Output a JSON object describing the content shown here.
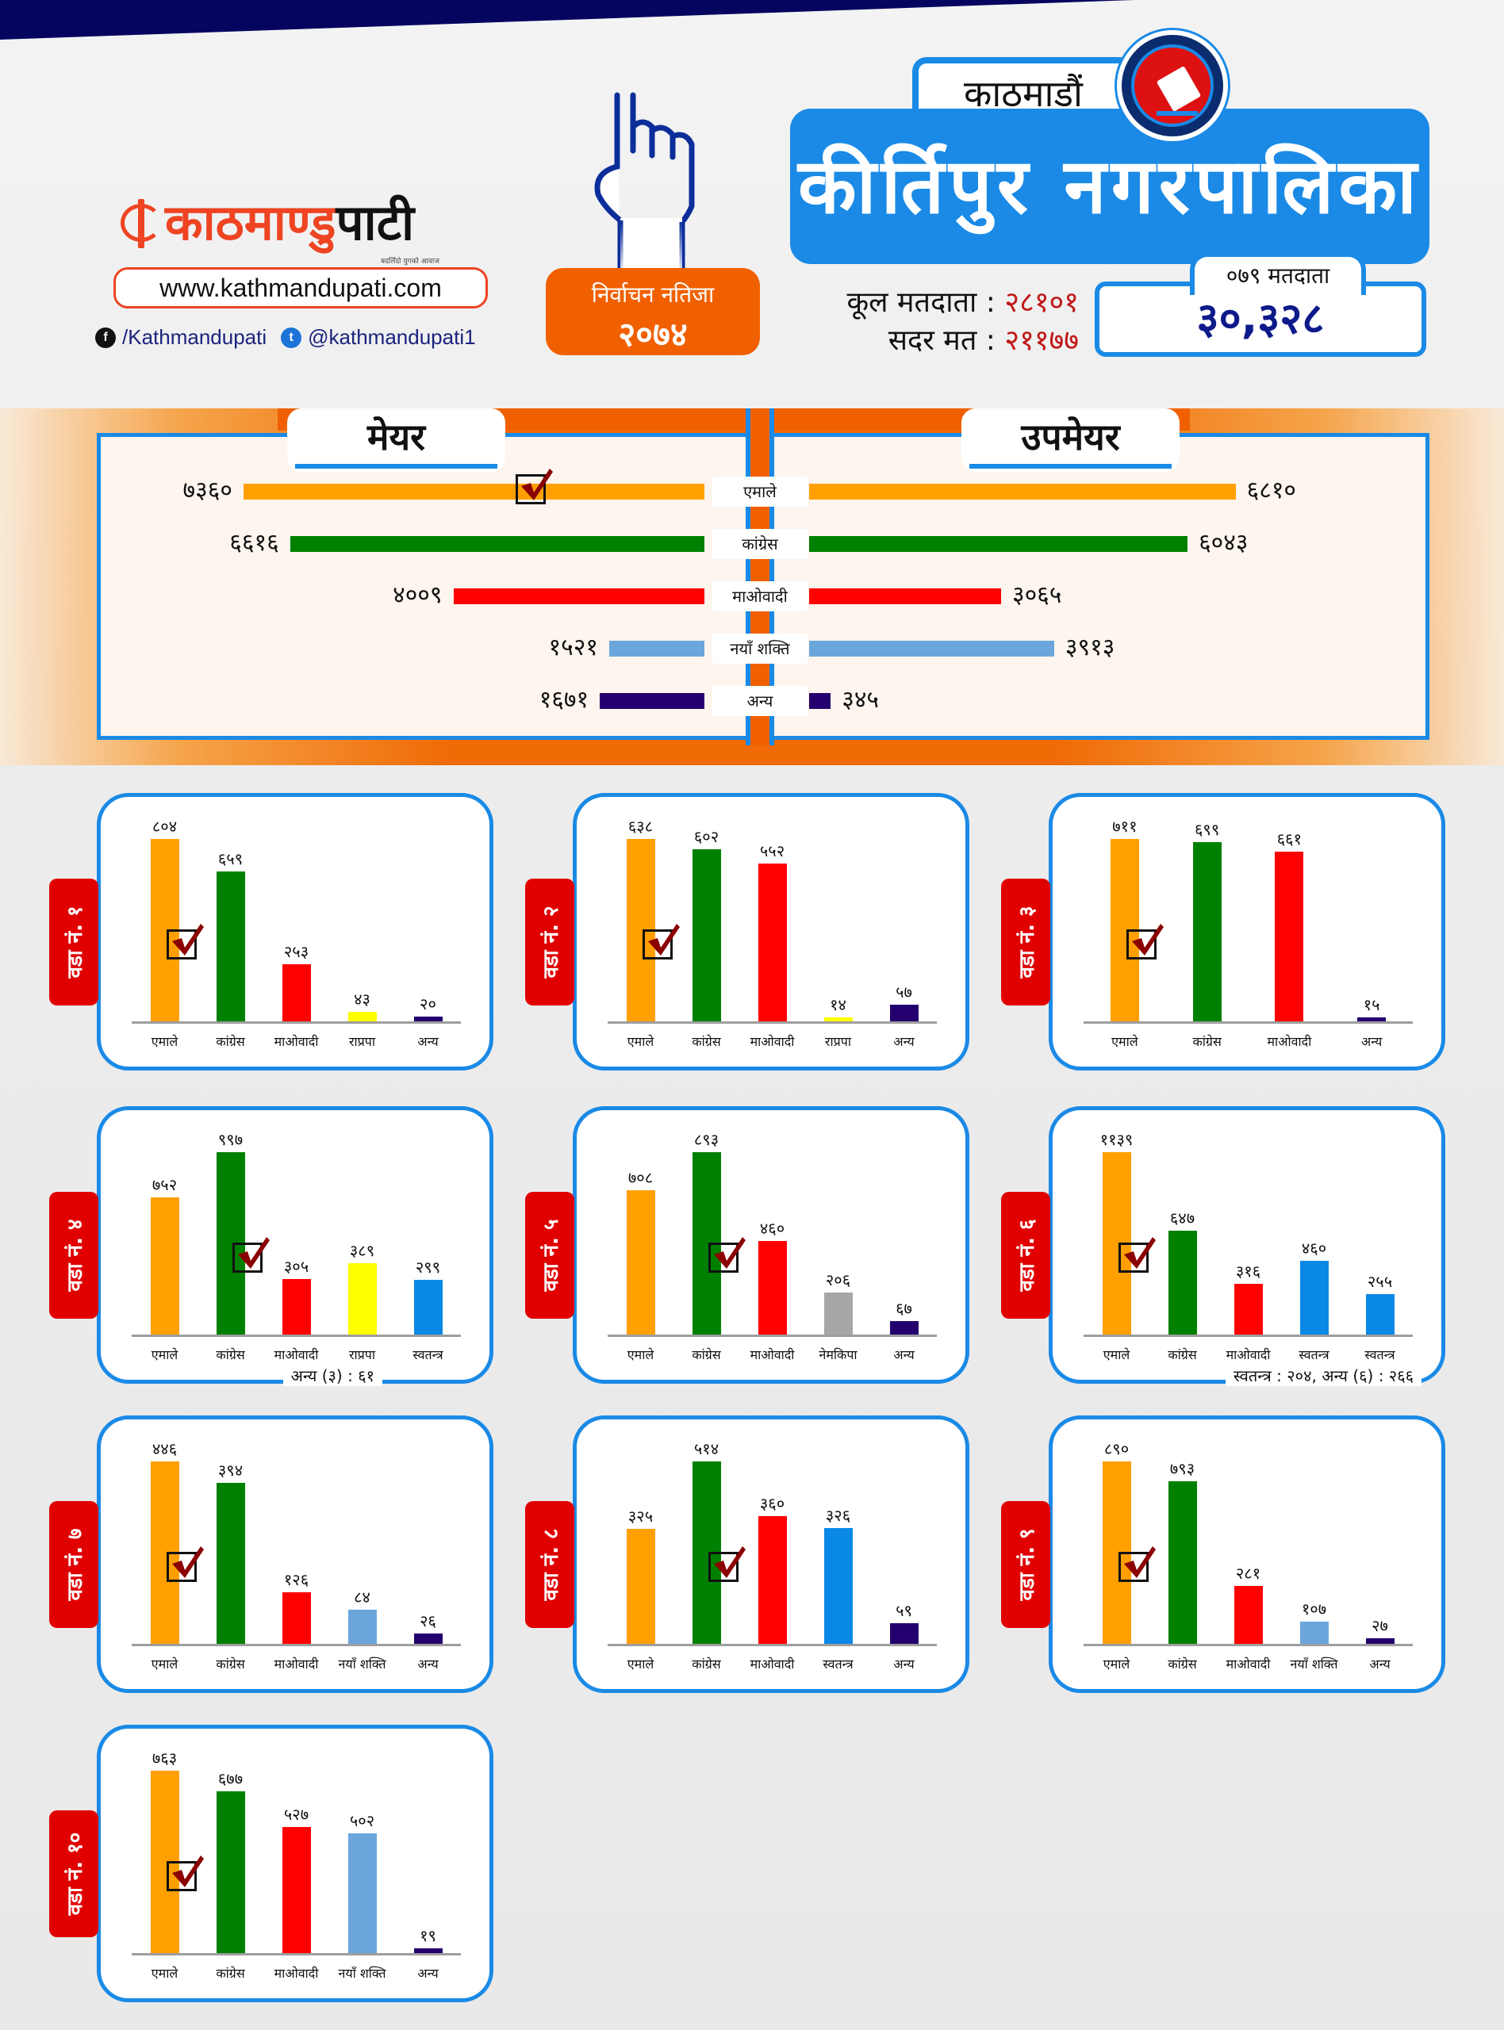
{
  "brand": {
    "logo_primary": "काठमाण्डु",
    "logo_secondary": "पाटी",
    "tagline": "बदलिँदो युगको आवाज",
    "website": "www.kathmandupati.com",
    "facebook": "/Kathmandupati",
    "twitter": "@kathmandupati1"
  },
  "badge": {
    "line1": "निर्वाचन नतिजा",
    "line2": "२०७४"
  },
  "header": {
    "district": "काठमाडौं",
    "municipality": "कीर्तिपुर नगरपालिका",
    "total_voters_label": "कूल मतदाता :",
    "total_voters": "२८१०१",
    "valid_votes_label": "सदर मत :",
    "valid_votes": "२११७७",
    "voters_079_label": "०७९ मतदाता",
    "voters_079": "३०,३२८"
  },
  "colors": {
    "एमाले": "#ffa000",
    "काँग्रेस": "#008000",
    "माओवादी": "#ff0000",
    "नयाँ शक्ति": "#6aa6dc",
    "अन्य": "#24006e",
    "राप्रपा": "#ffff00",
    "स्वतन्त्र": "#0a88e6",
    "नेमकिपा": "#a6a6a6",
    "accent_blue": "#1a8ae6",
    "accent_orange": "#f06000",
    "ward_tag_red": "#e00000",
    "check_red": "#8b0000"
  },
  "chart_data": [
    {
      "type": "bar",
      "orientation": "horizontal",
      "title": "मेयर",
      "categories": [
        "एमाले",
        "कांग्रेस",
        "माओवादी",
        "नयाँ शक्ति",
        "अन्य"
      ],
      "color_keys": [
        "एमाले",
        "काँग्रेस",
        "माओवादी",
        "नयाँ शक्ति",
        "अन्य"
      ],
      "values": [
        7360,
        6616,
        4009,
        1521,
        1671
      ],
      "labels": [
        "७३६०",
        "६६१६",
        "४००९",
        "१५२१",
        "१६७१"
      ],
      "winner_index": 0,
      "xlim": [
        0,
        7600
      ],
      "direction": "right-to-left"
    },
    {
      "type": "bar",
      "orientation": "horizontal",
      "title": "उपमेयर",
      "categories": [
        "एमाले",
        "कांग्रेस",
        "माओवादी",
        "नयाँ शक्ति",
        "अन्य"
      ],
      "color_keys": [
        "एमाले",
        "काँग्रेस",
        "माओवादी",
        "नयाँ शक्ति",
        "अन्य"
      ],
      "values": [
        6810,
        6043,
        3065,
        3913,
        345
      ],
      "labels": [
        "६८१०",
        "६०४३",
        "३०६५",
        "३९१३",
        "३४५"
      ],
      "winner_index": null,
      "xlim": [
        0,
        7600
      ],
      "direction": "left-to-right"
    },
    {
      "type": "bar",
      "title": "वडा नं. १",
      "categories": [
        "एमाले",
        "कांग्रेस",
        "माओवादी",
        "राप्रपा",
        "अन्य"
      ],
      "color_keys": [
        "एमाले",
        "काँग्रेस",
        "माओवादी",
        "राप्रपा",
        "अन्य"
      ],
      "values": [
        804,
        659,
        253,
        43,
        20
      ],
      "labels": [
        "८०४",
        "६५९",
        "२५३",
        "४३",
        "२०"
      ],
      "winner_index": 0,
      "note": ""
    },
    {
      "type": "bar",
      "title": "वडा नं. २",
      "categories": [
        "एमाले",
        "कांग्रेस",
        "माओवादी",
        "राप्रपा",
        "अन्य"
      ],
      "color_keys": [
        "एमाले",
        "काँग्रेस",
        "माओवादी",
        "राप्रपा",
        "अन्य"
      ],
      "values": [
        638,
        602,
        552,
        14,
        57
      ],
      "labels": [
        "६३८",
        "६०२",
        "५५२",
        "१४",
        "५७"
      ],
      "winner_index": 0,
      "note": ""
    },
    {
      "type": "bar",
      "title": "वडा नं. ३",
      "categories": [
        "एमाले",
        "कांग्रेस",
        "माओवादी",
        "अन्य"
      ],
      "color_keys": [
        "एमाले",
        "काँग्रेस",
        "माओवादी",
        "अन्य"
      ],
      "values": [
        711,
        699,
        661,
        15
      ],
      "labels": [
        "७११",
        "६९९",
        "६६१",
        "१५"
      ],
      "winner_index": 0,
      "note": ""
    },
    {
      "type": "bar",
      "title": "वडा नं. ४",
      "categories": [
        "एमाले",
        "कांग्रेस",
        "माओवादी",
        "राप्रपा",
        "स्वतन्त्र"
      ],
      "color_keys": [
        "एमाले",
        "काँग्रेस",
        "माओवादी",
        "राप्रपा",
        "स्वतन्त्र"
      ],
      "values": [
        752,
        997,
        305,
        389,
        299
      ],
      "labels": [
        "७५२",
        "९९७",
        "३०५",
        "३८९",
        "२९९"
      ],
      "winner_index": 1,
      "note": "अन्य (३) : ६१"
    },
    {
      "type": "bar",
      "title": "वडा नं. ५",
      "categories": [
        "एमाले",
        "कांग्रेस",
        "माओवादी",
        "नेमकिपा",
        "अन्य"
      ],
      "color_keys": [
        "एमाले",
        "काँग्रेस",
        "माओवादी",
        "नेमकिपा",
        "अन्य"
      ],
      "values": [
        708,
        893,
        460,
        206,
        67
      ],
      "labels": [
        "७०८",
        "८९३",
        "४६०",
        "२०६",
        "६७"
      ],
      "winner_index": 1,
      "note": ""
    },
    {
      "type": "bar",
      "title": "वडा नं. ६",
      "categories": [
        "एमाले",
        "कांग्रेस",
        "माओवादी",
        "स्वतन्त्र",
        "स्वतन्त्र"
      ],
      "color_keys": [
        "एमाले",
        "काँग्रेस",
        "माओवादी",
        "स्वतन्त्र",
        "स्वतन्त्र"
      ],
      "values": [
        1139,
        647,
        316,
        460,
        255
      ],
      "labels": [
        "११३९",
        "६४७",
        "३१६",
        "४६०",
        "२५५"
      ],
      "winner_index": 0,
      "note": "स्वतन्त्र : २०४, अन्य (६) : २६६"
    },
    {
      "type": "bar",
      "title": "वडा नं. ७",
      "categories": [
        "एमाले",
        "कांग्रेस",
        "माओवादी",
        "नयाँ शक्ति",
        "अन्य"
      ],
      "color_keys": [
        "एमाले",
        "काँग्रेस",
        "माओवादी",
        "नयाँ शक्ति",
        "अन्य"
      ],
      "values": [
        446,
        394,
        126,
        84,
        26
      ],
      "labels": [
        "४४६",
        "३९४",
        "१२६",
        "८४",
        "२६"
      ],
      "winner_index": 0,
      "note": ""
    },
    {
      "type": "bar",
      "title": "वडा नं. ८",
      "categories": [
        "एमाले",
        "कांग्रेस",
        "माओवादी",
        "स्वतन्त्र",
        "अन्य"
      ],
      "color_keys": [
        "एमाले",
        "काँग्रेस",
        "माओवादी",
        "स्वतन्त्र",
        "अन्य"
      ],
      "values": [
        325,
        514,
        360,
        326,
        59
      ],
      "labels": [
        "३२५",
        "५१४",
        "३६०",
        "३२६",
        "५९"
      ],
      "winner_index": 1,
      "note": ""
    },
    {
      "type": "bar",
      "title": "वडा नं. ९",
      "categories": [
        "एमाले",
        "कांग्रेस",
        "माओवादी",
        "नयाँ शक्ति",
        "अन्य"
      ],
      "color_keys": [
        "एमाले",
        "काँग्रेस",
        "माओवादी",
        "नयाँ शक्ति",
        "अन्य"
      ],
      "values": [
        890,
        793,
        281,
        107,
        27
      ],
      "labels": [
        "८९०",
        "७९३",
        "२८१",
        "१०७",
        "२७"
      ],
      "winner_index": 0,
      "note": ""
    },
    {
      "type": "bar",
      "title": "वडा नं. १०",
      "categories": [
        "एमाले",
        "कांग्रेस",
        "माओवादी",
        "नयाँ शक्ति",
        "अन्य"
      ],
      "color_keys": [
        "एमाले",
        "काँग्रेस",
        "माओवादी",
        "नयाँ शक्ति",
        "अन्य"
      ],
      "values": [
        763,
        677,
        527,
        502,
        19
      ],
      "labels": [
        "७६३",
        "६७७",
        "५२७",
        "५०२",
        "१९"
      ],
      "winner_index": 0,
      "note": ""
    }
  ]
}
